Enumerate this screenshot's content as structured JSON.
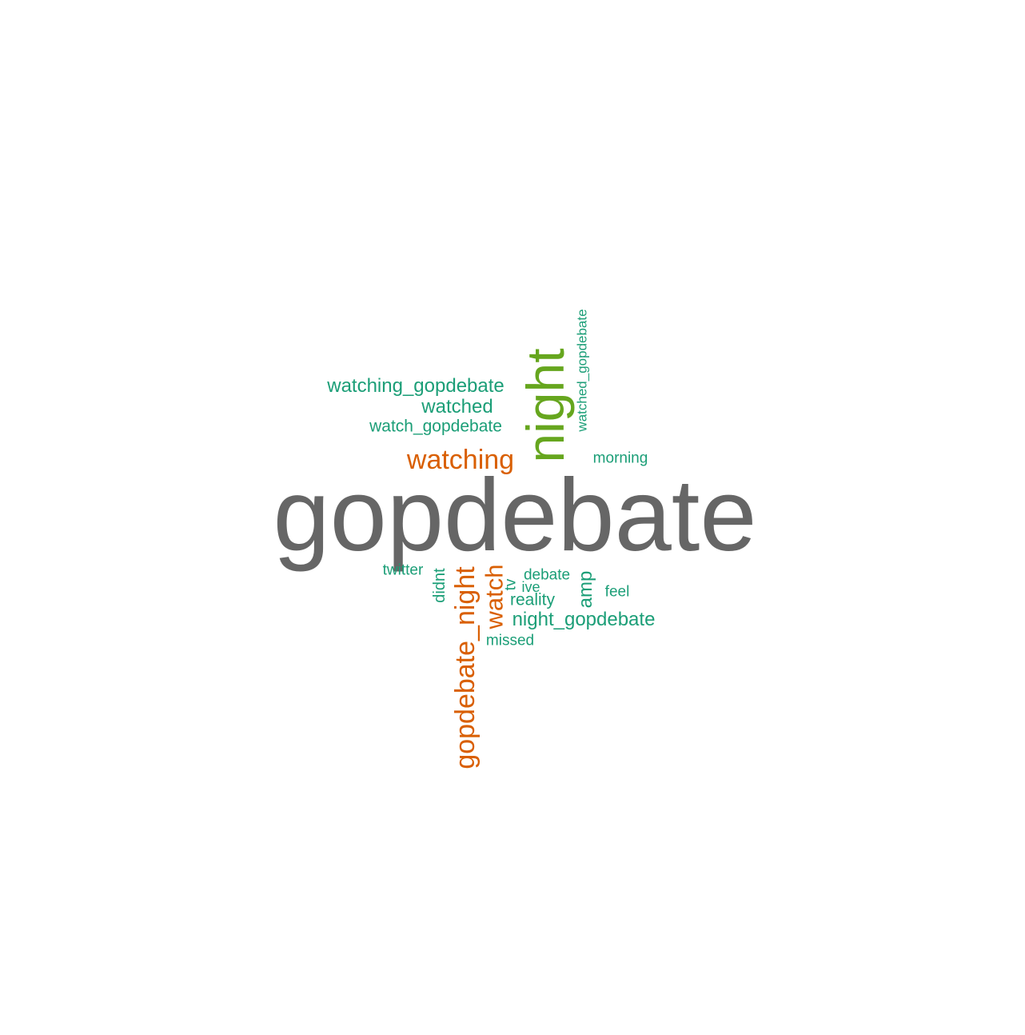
{
  "wordcloud": {
    "colors": {
      "gray": "#666666",
      "green": "#66a61e",
      "orange": "#d95f02",
      "teal": "#1b9e77"
    },
    "words": {
      "gopdebate": "gopdebate",
      "night": "night",
      "watching": "watching",
      "watching_gopdebate": "watching_gopdebate",
      "watched": "watched",
      "watch_gopdebate": "watch_gopdebate",
      "watched_gopdebate": "watched_gopdebate",
      "morning": "morning",
      "twitter": "twitter",
      "didnt": "didnt",
      "gopdebate_night": "gopdebate_night",
      "watch": "watch",
      "tv": "tv",
      "ive": "ive",
      "debate": "debate",
      "reality": "reality",
      "amp": "amp",
      "feel": "feel",
      "night_gopdebate": "night_gopdebate",
      "missed": "missed"
    }
  }
}
